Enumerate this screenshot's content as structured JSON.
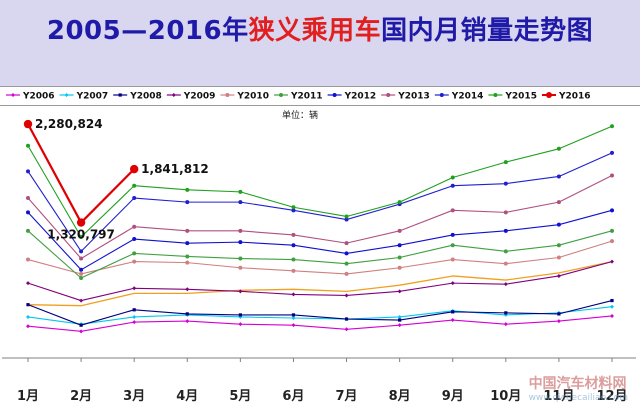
{
  "title": {
    "part1": "2005—2016年",
    "part2": "狭义乘用车",
    "part3": "国内月销量走势图"
  },
  "unit_label": "单位：辆",
  "watermark": {
    "cn": "中国汽车材料网",
    "en": "www.qichecailiao.com"
  },
  "colors": {
    "title_blue": "#1f1aa8",
    "title_red": "#e21f1f",
    "title_band": "#d9d6ef"
  },
  "chart_data": {
    "type": "line",
    "title": "2005—2016年狭义乘用车国内月销量走势图",
    "unit": "单位：辆",
    "x": [
      "1月",
      "2月",
      "3月",
      "4月",
      "5月",
      "6月",
      "7月",
      "8月",
      "9月",
      "10月",
      "11月",
      "12月"
    ],
    "ylim": [
      0,
      2350000
    ],
    "grid": false,
    "legend_placement": "top",
    "series": [
      {
        "name": "Y2006",
        "color": "#d400d4",
        "marker": "diamond",
        "values": [
          310000,
          260000,
          350000,
          360000,
          330000,
          320000,
          280000,
          320000,
          370000,
          330000,
          360000,
          410000
        ]
      },
      {
        "name": "Y2007",
        "color": "#00c8f0",
        "marker": "diamond",
        "values": [
          400000,
          330000,
          400000,
          420000,
          400000,
          390000,
          380000,
          400000,
          460000,
          420000,
          440000,
          500000
        ]
      },
      {
        "name": "Y2008",
        "color": "#000080",
        "marker": "square",
        "values": [
          520000,
          320000,
          470000,
          430000,
          420000,
          420000,
          380000,
          370000,
          450000,
          440000,
          430000,
          560000
        ]
      },
      {
        "name": "Y2009",
        "color": "#800080",
        "marker": "diamond",
        "values": [
          730000,
          560000,
          680000,
          670000,
          650000,
          620000,
          610000,
          650000,
          730000,
          720000,
          800000,
          940000
        ]
      },
      {
        "name": "Y2010",
        "color": "#d08080",
        "marker": "dot",
        "values": [
          960000,
          820000,
          940000,
          930000,
          880000,
          850000,
          820000,
          880000,
          960000,
          920000,
          980000,
          1140000
        ]
      },
      {
        "name": "Y2011",
        "color": "#40a040",
        "marker": "dot",
        "values": [
          1240000,
          780000,
          1020000,
          990000,
          970000,
          960000,
          920000,
          980000,
          1100000,
          1040000,
          1100000,
          1240000
        ]
      },
      {
        "name": "Y2012",
        "color": "#1010d0",
        "marker": "dot",
        "values": [
          1420000,
          860000,
          1160000,
          1120000,
          1130000,
          1100000,
          1020000,
          1100000,
          1200000,
          1240000,
          1300000,
          1440000
        ]
      },
      {
        "name": "Y2013",
        "color": "#b05080",
        "marker": "dot",
        "values": [
          1560000,
          970000,
          1280000,
          1240000,
          1240000,
          1200000,
          1120000,
          1240000,
          1440000,
          1420000,
          1520000,
          1780000
        ]
      },
      {
        "name": "Y2014",
        "color": "#2020d0",
        "marker": "dot",
        "values": [
          1820000,
          1040000,
          1560000,
          1520000,
          1520000,
          1440000,
          1350000,
          1500000,
          1680000,
          1700000,
          1770000,
          2000000
        ]
      },
      {
        "name": "Y2015",
        "color": "#20a020",
        "marker": "dot",
        "values": [
          2070000,
          1180000,
          1680000,
          1640000,
          1620000,
          1470000,
          1380000,
          1520000,
          1760000,
          1910000,
          2040000,
          2260000
        ]
      },
      {
        "name": "Y2016",
        "color": "#e00000",
        "marker": "dot",
        "values": [
          2280824,
          1320797,
          1841812,
          null,
          null,
          null,
          null,
          null,
          null,
          null,
          null,
          null
        ]
      }
    ],
    "extra_lines": [
      {
        "color": "#f0a020",
        "values": [
          520000,
          510000,
          630000,
          630000,
          660000,
          670000,
          650000,
          710000,
          800000,
          760000,
          830000,
          940000
        ]
      }
    ],
    "annotations": [
      {
        "series": "Y2016",
        "index": 0,
        "text": "2,280,824",
        "placement": "right"
      },
      {
        "series": "Y2016",
        "index": 1,
        "text": "1,320,797",
        "placement": "below"
      },
      {
        "series": "Y2016",
        "index": 2,
        "text": "1,841,812",
        "placement": "right"
      }
    ]
  }
}
